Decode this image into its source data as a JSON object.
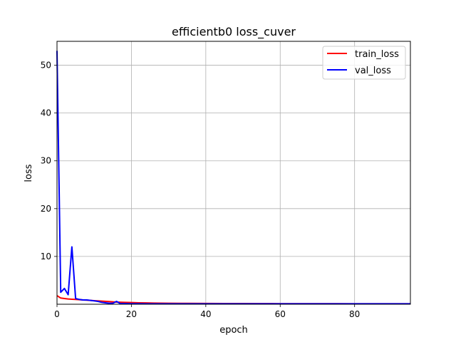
{
  "chart_data": {
    "type": "line",
    "title": "efficientb0 loss_cuver",
    "xlabel": "epoch",
    "ylabel": "loss",
    "xlim": [
      0,
      95
    ],
    "ylim": [
      0,
      55
    ],
    "xticks": [
      0,
      20,
      40,
      60,
      80
    ],
    "yticks": [
      10,
      20,
      30,
      40,
      50
    ],
    "grid": true,
    "legend_position": "top-right",
    "series": [
      {
        "name": "train_loss",
        "color": "#ff0000",
        "x": [
          0,
          1,
          2,
          3,
          4,
          5,
          6,
          7,
          8,
          9,
          10,
          12,
          14,
          16,
          18,
          20,
          22,
          24,
          26,
          28,
          30,
          35,
          40,
          45,
          50,
          55,
          60,
          65,
          70,
          75,
          80,
          85,
          90,
          95
        ],
        "y": [
          1.8,
          1.3,
          1.2,
          1.1,
          1.05,
          1.0,
          0.95,
          0.9,
          0.85,
          0.8,
          0.75,
          0.65,
          0.55,
          0.45,
          0.4,
          0.35,
          0.3,
          0.28,
          0.25,
          0.22,
          0.2,
          0.18,
          0.16,
          0.15,
          0.14,
          0.13,
          0.12,
          0.12,
          0.11,
          0.11,
          0.1,
          0.1,
          0.1,
          0.1
        ]
      },
      {
        "name": "val_loss",
        "color": "#0000ff",
        "x": [
          0,
          1,
          2,
          3,
          4,
          5,
          6,
          7,
          8,
          9,
          10,
          11,
          12,
          13,
          14,
          15,
          16,
          17,
          18,
          20,
          22,
          24,
          26,
          28,
          30,
          35,
          40,
          45,
          50,
          55,
          60,
          65,
          70,
          75,
          80,
          85,
          90,
          95
        ],
        "y": [
          53,
          2.5,
          3.3,
          2.0,
          12.0,
          1.2,
          1.0,
          0.9,
          0.9,
          0.8,
          0.7,
          0.6,
          0.4,
          0.3,
          0.2,
          0.2,
          0.6,
          0.15,
          0.15,
          0.12,
          0.12,
          0.1,
          0.1,
          0.1,
          0.1,
          0.1,
          0.1,
          0.1,
          0.1,
          0.1,
          0.1,
          0.1,
          0.1,
          0.1,
          0.1,
          0.1,
          0.1,
          0.1
        ]
      }
    ]
  }
}
